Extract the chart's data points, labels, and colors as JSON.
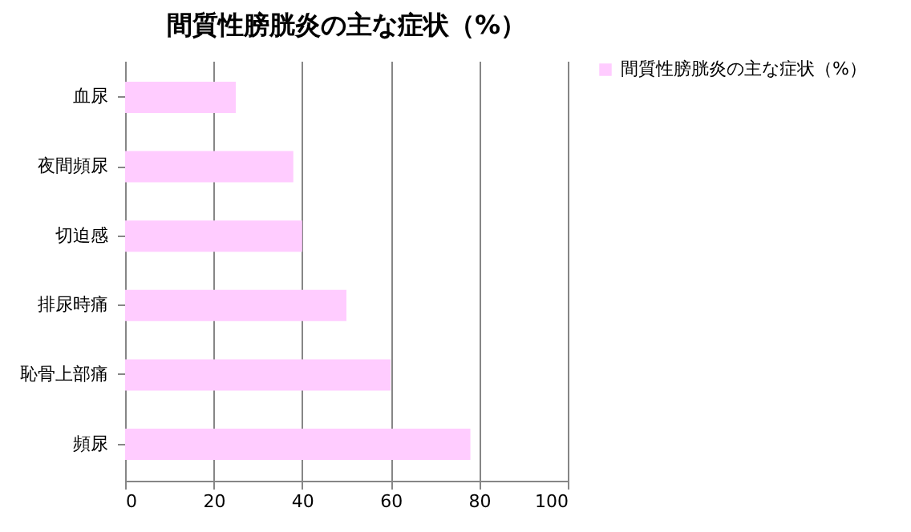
{
  "chart_data": {
    "type": "bar",
    "orientation": "horizontal",
    "title": "間質性膀胱炎の主な症状（%）",
    "categories": [
      "血尿",
      "夜間頻尿",
      "切迫感",
      "排尿時痛",
      "恥骨上部痛",
      "頻尿"
    ],
    "series": [
      {
        "name": "間質性膀胱炎の主な症状（%）",
        "color": "#ffccff",
        "values": [
          25,
          38,
          40,
          50,
          60,
          78
        ]
      }
    ],
    "xlim": [
      0,
      100
    ],
    "xticks": [
      0,
      20,
      40,
      60,
      80,
      100
    ],
    "grid": "x",
    "legend": "right"
  }
}
